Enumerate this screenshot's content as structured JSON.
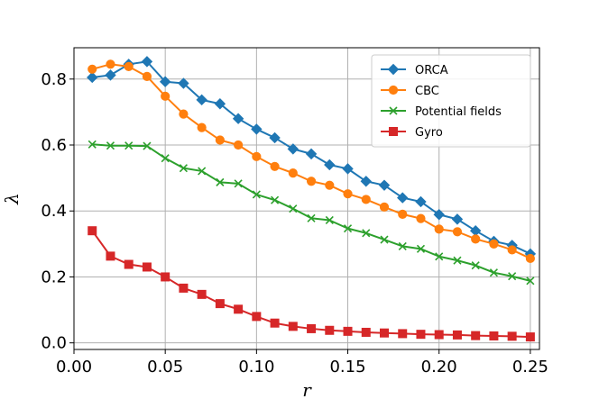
{
  "chart_data": {
    "type": "line",
    "title": "",
    "xlabel": "r",
    "ylabel": "λ",
    "xlim": [
      0.0,
      0.255
    ],
    "ylim": [
      -0.02,
      0.895
    ],
    "xticks": [
      0.0,
      0.05,
      0.1,
      0.15,
      0.2,
      0.25
    ],
    "xtick_labels": [
      "0.00",
      "0.05",
      "0.10",
      "0.15",
      "0.20",
      "0.25"
    ],
    "yticks": [
      0.0,
      0.2,
      0.4,
      0.6,
      0.8
    ],
    "ytick_labels": [
      "0.0",
      "0.2",
      "0.4",
      "0.6",
      "0.8"
    ],
    "grid": true,
    "legend_position": "top-right",
    "x": [
      0.01,
      0.02,
      0.03,
      0.04,
      0.05,
      0.06,
      0.07,
      0.08,
      0.09,
      0.1,
      0.11,
      0.12,
      0.13,
      0.14,
      0.15,
      0.16,
      0.17,
      0.18,
      0.19,
      0.2,
      0.21,
      0.22,
      0.23,
      0.24,
      0.25
    ],
    "series": [
      {
        "name": "ORCA",
        "color": "#1f77b4",
        "marker": "diamond",
        "values": [
          0.805,
          0.812,
          0.845,
          0.853,
          0.792,
          0.787,
          0.737,
          0.725,
          0.68,
          0.648,
          0.622,
          0.588,
          0.573,
          0.54,
          0.528,
          0.49,
          0.478,
          0.44,
          0.428,
          0.389,
          0.375,
          0.34,
          0.308,
          0.296,
          0.27
        ]
      },
      {
        "name": "CBC",
        "color": "#ff7f0e",
        "marker": "circle",
        "values": [
          0.83,
          0.845,
          0.838,
          0.808,
          0.748,
          0.694,
          0.653,
          0.615,
          0.6,
          0.565,
          0.535,
          0.515,
          0.49,
          0.478,
          0.452,
          0.435,
          0.412,
          0.39,
          0.377,
          0.345,
          0.337,
          0.315,
          0.3,
          0.282,
          0.256
        ]
      },
      {
        "name": "Potential fields",
        "color": "#2ca02c",
        "marker": "x",
        "values": [
          0.602,
          0.598,
          0.598,
          0.597,
          0.56,
          0.53,
          0.521,
          0.487,
          0.483,
          0.45,
          0.433,
          0.407,
          0.378,
          0.372,
          0.347,
          0.333,
          0.313,
          0.293,
          0.285,
          0.262,
          0.25,
          0.235,
          0.213,
          0.202,
          0.188
        ]
      },
      {
        "name": "Gyro",
        "color": "#d62728",
        "marker": "square",
        "values": [
          0.34,
          0.263,
          0.238,
          0.23,
          0.2,
          0.166,
          0.147,
          0.119,
          0.102,
          0.08,
          0.06,
          0.05,
          0.043,
          0.038,
          0.035,
          0.032,
          0.03,
          0.028,
          0.026,
          0.025,
          0.024,
          0.022,
          0.021,
          0.02,
          0.018
        ]
      }
    ]
  }
}
